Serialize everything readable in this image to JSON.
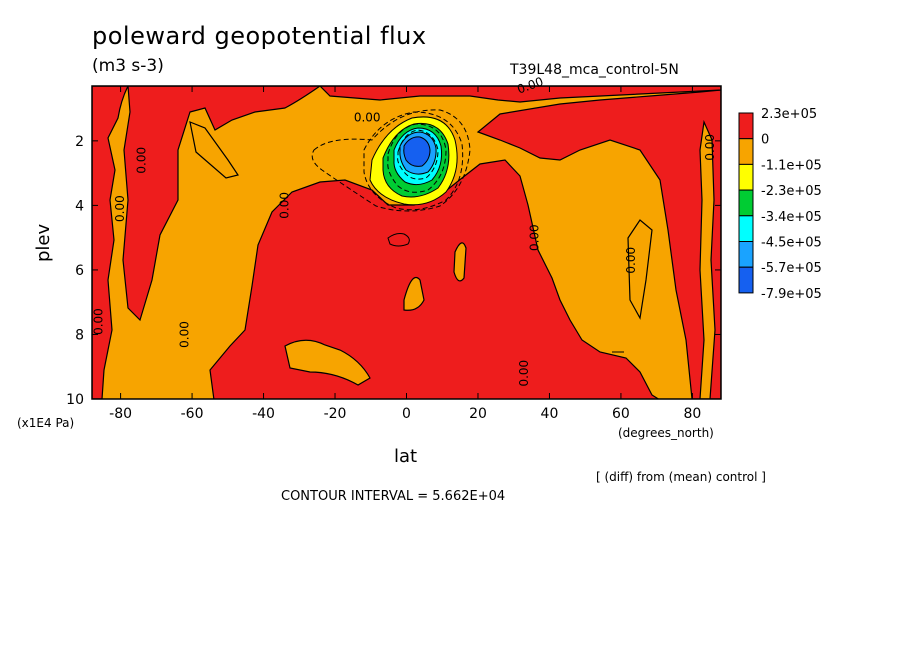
{
  "chart_data": {
    "type": "heatmap",
    "title": "poleward geopotential flux",
    "units": "(m3 s-3)",
    "run_label": "T39L48_mca_control-5N",
    "note": "[ (diff) from (mean) control ]",
    "contour_interval": "CONTOUR INTERVAL = 5.662E+04",
    "xlabel": "lat",
    "xunit": "(degrees_north)",
    "ylabel": "plev",
    "yunit": "(x1E4 Pa)",
    "x_ticks": [
      "-80",
      "-60",
      "-40",
      "-20",
      "0",
      "20",
      "40",
      "60",
      "80"
    ],
    "x_tick_values": [
      -80,
      -60,
      -40,
      -20,
      0,
      20,
      40,
      60,
      80
    ],
    "y_ticks": [
      "2",
      "4",
      "6",
      "8",
      "10"
    ],
    "y_tick_values": [
      2,
      4,
      6,
      8,
      10
    ],
    "xlim": [
      -88,
      88
    ],
    "ylim": [
      10,
      0.3
    ],
    "grid": false,
    "colorbar": {
      "labels": [
        "2.3e+05",
        "0",
        "-1.1e+05",
        "-2.3e+05",
        "-3.4e+05",
        "-4.5e+05",
        "-5.7e+05",
        "-7.9e+05"
      ],
      "colors": [
        "#ee1d1d",
        "#f7a400",
        "#ffff00",
        "#00cc33",
        "#00ffff",
        "#1aa3ff",
        "#1560f0"
      ]
    },
    "contour_labels": [
      {
        "text": "0.00",
        "x": -73,
        "y": 2.6,
        "rot": -90
      },
      {
        "text": "0.00",
        "x": -79,
        "y": 4.1,
        "rot": -90
      },
      {
        "text": "0.00",
        "x": -85,
        "y": 7.6,
        "rot": -90
      },
      {
        "text": "0.00",
        "x": -61,
        "y": 8.0,
        "rot": -90
      },
      {
        "text": "0.00",
        "x": -33,
        "y": 4.0,
        "rot": -90
      },
      {
        "text": "0.00",
        "x": -11,
        "y": 1.4,
        "rot": 0
      },
      {
        "text": "0.00",
        "x": 35,
        "y": 0.4,
        "rot": -20
      },
      {
        "text": "0.00",
        "x": 37,
        "y": 5.0,
        "rot": -90
      },
      {
        "text": "0.00",
        "x": 34,
        "y": 9.2,
        "rot": -90
      },
      {
        "text": "0.00",
        "x": 64,
        "y": 5.7,
        "rot": -90
      },
      {
        "text": "0.00",
        "x": 86,
        "y": 2.2,
        "rot": -90
      }
    ],
    "negative_anomaly": {
      "center_lat": 2,
      "center_plev": 2.0,
      "min_value": "-7.9e+05"
    }
  }
}
